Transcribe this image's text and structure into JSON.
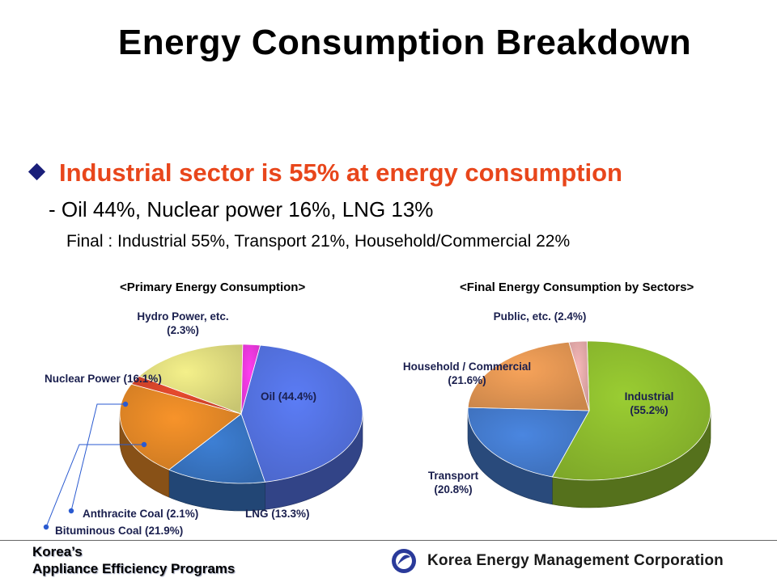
{
  "page": {
    "title": "Energy Consumption Breakdown",
    "bullet": "Industrial sector is 55% at energy consumption",
    "line1": "- Oil 44%, Nuclear power 16%, LNG 13%",
    "line2": "Final : Industrial 55%, Transport 21%, Household/Commercial 22%"
  },
  "footer": {
    "left_line1": "Korea’s",
    "left_line2": "Appliance Efficiency Programs",
    "corp_name": "Korea Energy Management Corporation"
  },
  "chart_data": [
    {
      "type": "pie",
      "title": "<Primary Energy Consumption>",
      "slices": [
        {
          "label": "Oil (44.4%)",
          "value": 44.4,
          "color": "#5b7cf5"
        },
        {
          "label": "LNG (13.3%)",
          "value": 13.3,
          "color": "#3d7fd4"
        },
        {
          "label": "Bituminous Coal (21.9%)",
          "value": 21.9,
          "color": "#f7932a"
        },
        {
          "label": "Anthracite Coal (2.1%)",
          "value": 2.1,
          "color": "#e84b2e"
        },
        {
          "label": "Nuclear Power (16.1%)",
          "value": 16.1,
          "color": "#f4f08a"
        },
        {
          "label": "Hydro Power, etc. (2.3%)",
          "value": 2.3,
          "color": "#ff3df0"
        }
      ]
    },
    {
      "type": "pie",
      "title": "<Final Energy Consumption by Sectors>",
      "slices": [
        {
          "label": "Industrial (55.2%)",
          "value": 55.2,
          "color": "#9acd32"
        },
        {
          "label": "Transport (20.8%)",
          "value": 20.8,
          "color": "#4a86e0"
        },
        {
          "label": "Household / Commercial (21.6%)",
          "value": 21.6,
          "color": "#f7a35a"
        },
        {
          "label": "Public, etc. (2.4%)",
          "value": 2.4,
          "color": "#f7b8b8"
        }
      ]
    }
  ]
}
